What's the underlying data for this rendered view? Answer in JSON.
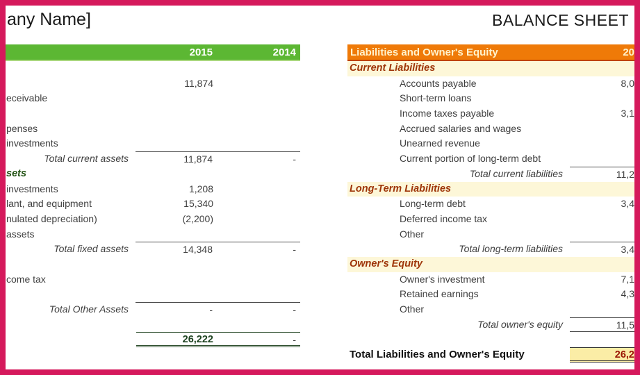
{
  "page": {
    "title_left": "any Name]",
    "title_right": "BALANCE SHEET"
  },
  "colors": {
    "border-pink": "#d5195c",
    "green-bar": "#5cb733",
    "green-bar-edge": "#a9d77d",
    "orange-bar": "#ef7a08",
    "orange-bar-edge": "#bf4300",
    "orange-bar-text": "#fff3cc",
    "band-yellow": "#fdf7d8",
    "highlight-yellow": "#fbeda6",
    "dark-green": "#235314",
    "total-green": "#1c421f",
    "maroon": "#9e3508",
    "dark-red": "#991403",
    "text": "#3f3f3f",
    "line": "#4a4a4a",
    "grand-line": "#2f4f2f",
    "title": "#1a1a1a"
  },
  "assets_table": {
    "header": {
      "col_2015": "2015",
      "col_2014": "2014"
    },
    "rows": [
      {
        "t": "blank"
      },
      {
        "t": "item",
        "label": "",
        "v1": "11,874"
      },
      {
        "t": "item",
        "label": "eceivable"
      },
      {
        "t": "blank"
      },
      {
        "t": "item",
        "label": "penses"
      },
      {
        "t": "item",
        "label": "investments"
      },
      {
        "t": "total",
        "label": "Total current assets",
        "v1": "11,874",
        "v2": "-",
        "line": "top"
      },
      {
        "t": "section",
        "label": "sets"
      },
      {
        "t": "item",
        "label": "investments",
        "v1": "1,208"
      },
      {
        "t": "item",
        "label": "lant, and equipment",
        "v1": "15,340"
      },
      {
        "t": "item",
        "label": "nulated depreciation)",
        "v1": "(2,200)"
      },
      {
        "t": "item",
        "label": "assets"
      },
      {
        "t": "total",
        "label": "Total fixed assets",
        "v1": "14,348",
        "v2": "-",
        "line": "top"
      },
      {
        "t": "blank"
      },
      {
        "t": "item",
        "label": "come tax"
      },
      {
        "t": "blank"
      },
      {
        "t": "total",
        "label": "Total Other Assets",
        "v1": "-",
        "v2": "-",
        "line": "top"
      },
      {
        "t": "blank"
      },
      {
        "t": "grand",
        "label": "",
        "v1": "26,222",
        "v2": "-"
      }
    ]
  },
  "liabilities_table": {
    "header": {
      "title": "Liabilities and Owner's Equity",
      "year": "20"
    },
    "rows": [
      {
        "t": "section",
        "label": "Current Liabilities"
      },
      {
        "t": "item",
        "label": "Accounts payable",
        "v": "8,0"
      },
      {
        "t": "item",
        "label": "Short-term loans"
      },
      {
        "t": "item",
        "label": "Income taxes payable",
        "v": "3,1"
      },
      {
        "t": "item",
        "label": "Accrued salaries and wages"
      },
      {
        "t": "item",
        "label": "Unearned revenue"
      },
      {
        "t": "item",
        "label": "Current portion of long-term debt"
      },
      {
        "t": "total",
        "label": "Total current liabilities",
        "v": "11,2",
        "line": "top"
      },
      {
        "t": "section",
        "label": "Long-Term Liabilities"
      },
      {
        "t": "item",
        "label": "Long-term debt",
        "v": "3,4"
      },
      {
        "t": "item",
        "label": "Deferred income tax"
      },
      {
        "t": "item",
        "label": "Other"
      },
      {
        "t": "total",
        "label": "Total long-term liabilities",
        "v": "3,4",
        "line": "top"
      },
      {
        "t": "section",
        "label": "Owner's Equity"
      },
      {
        "t": "item",
        "label": "Owner's investment",
        "v": "7,1"
      },
      {
        "t": "item",
        "label": "Retained earnings",
        "v": "4,3"
      },
      {
        "t": "item",
        "label": "Other"
      },
      {
        "t": "total",
        "label": "Total owner's equity",
        "v": "11,5",
        "line": "topbottom"
      },
      {
        "t": "blank"
      },
      {
        "t": "grand",
        "label": "Total Liabilities and Owner's Equity",
        "v": "26,2"
      }
    ]
  }
}
